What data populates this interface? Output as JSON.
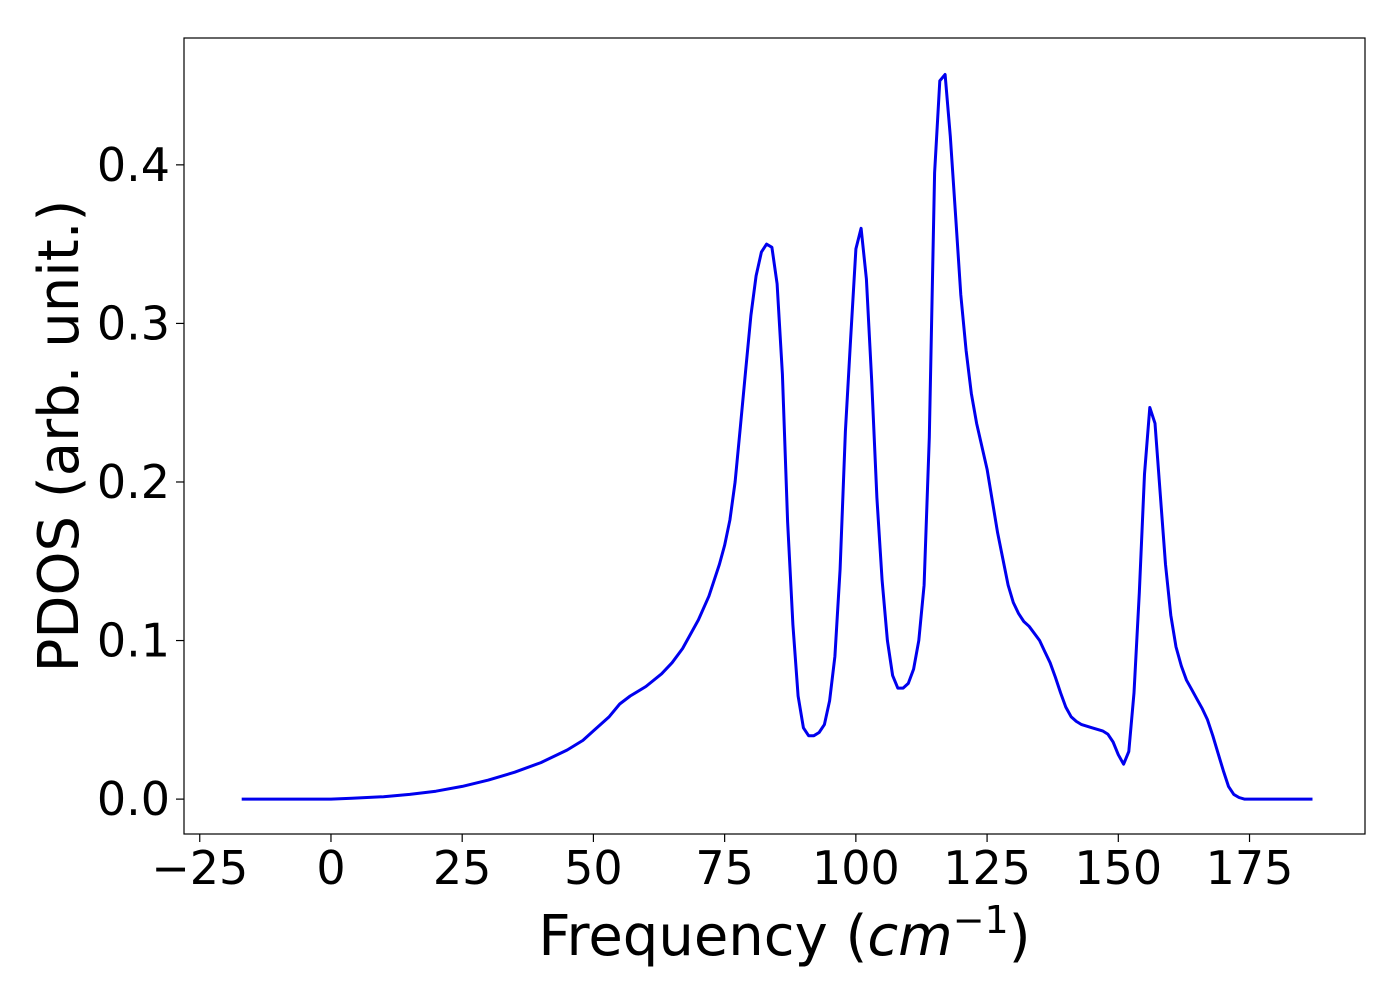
{
  "chart_data": {
    "type": "line",
    "xlabel": "Frequency (",
    "xlabel_italic": "cm",
    "xlabel_superscript": "−1",
    "xlabel_close": ")",
    "ylabel": "PDOS (arb. unit.)",
    "xlim": [
      -28,
      197
    ],
    "ylim": [
      -0.022,
      0.48
    ],
    "grid": false,
    "x_ticks": [
      -25,
      0,
      25,
      50,
      75,
      100,
      125,
      150,
      175
    ],
    "x_tick_labels": [
      "−25",
      "0",
      "25",
      "50",
      "75",
      "100",
      "125",
      "150",
      "175"
    ],
    "y_ticks": [
      0.0,
      0.1,
      0.2,
      0.3,
      0.4
    ],
    "y_tick_labels": [
      "0.0",
      "0.1",
      "0.2",
      "0.3",
      "0.4"
    ],
    "series": [
      {
        "color": "#0000ee",
        "x": [
          -17,
          0,
          4,
          10,
          15,
          20,
          25,
          30,
          35,
          40,
          45,
          48,
          50,
          53,
          55,
          57,
          60,
          63,
          65,
          67,
          70,
          72,
          74,
          75,
          76,
          77,
          78,
          79,
          80,
          81,
          82,
          83,
          84,
          85,
          86,
          87,
          88,
          89,
          90,
          91,
          92,
          93,
          94,
          95,
          96,
          97,
          98,
          99,
          100,
          101,
          102,
          103,
          104,
          105,
          106,
          107,
          108,
          109,
          110,
          111,
          112,
          113,
          114,
          115,
          116,
          117,
          118,
          119,
          120,
          121,
          122,
          123,
          125,
          127,
          129,
          130,
          131,
          132,
          133,
          135,
          136,
          137,
          138,
          139,
          140,
          141,
          142,
          143,
          145,
          147,
          148,
          149,
          150,
          151,
          152,
          153,
          154,
          155,
          156,
          157,
          158,
          159,
          160,
          161,
          162,
          163,
          164,
          165,
          166,
          167,
          168,
          169,
          170,
          171,
          172,
          173,
          174,
          175,
          176,
          180,
          187
        ],
        "y": [
          0.0,
          0.0,
          0.0005,
          0.0015,
          0.003,
          0.005,
          0.008,
          0.012,
          0.017,
          0.023,
          0.031,
          0.037,
          0.043,
          0.052,
          0.06,
          0.065,
          0.071,
          0.079,
          0.086,
          0.095,
          0.113,
          0.128,
          0.148,
          0.16,
          0.176,
          0.2,
          0.235,
          0.27,
          0.305,
          0.33,
          0.345,
          0.35,
          0.348,
          0.325,
          0.268,
          0.175,
          0.11,
          0.065,
          0.045,
          0.04,
          0.04,
          0.042,
          0.047,
          0.062,
          0.09,
          0.145,
          0.232,
          0.29,
          0.347,
          0.36,
          0.328,
          0.265,
          0.19,
          0.138,
          0.1,
          0.078,
          0.07,
          0.07,
          0.073,
          0.082,
          0.1,
          0.135,
          0.228,
          0.395,
          0.453,
          0.457,
          0.418,
          0.368,
          0.318,
          0.283,
          0.256,
          0.237,
          0.208,
          0.168,
          0.135,
          0.124,
          0.117,
          0.112,
          0.109,
          0.1,
          0.093,
          0.086,
          0.077,
          0.067,
          0.058,
          0.052,
          0.049,
          0.047,
          0.045,
          0.043,
          0.041,
          0.036,
          0.028,
          0.022,
          0.03,
          0.067,
          0.13,
          0.205,
          0.247,
          0.237,
          0.192,
          0.148,
          0.116,
          0.096,
          0.084,
          0.075,
          0.069,
          0.063,
          0.057,
          0.05,
          0.04,
          0.029,
          0.018,
          0.008,
          0.003,
          0.001,
          0.0,
          0.0,
          0.0,
          0.0,
          0.0
        ]
      }
    ]
  }
}
